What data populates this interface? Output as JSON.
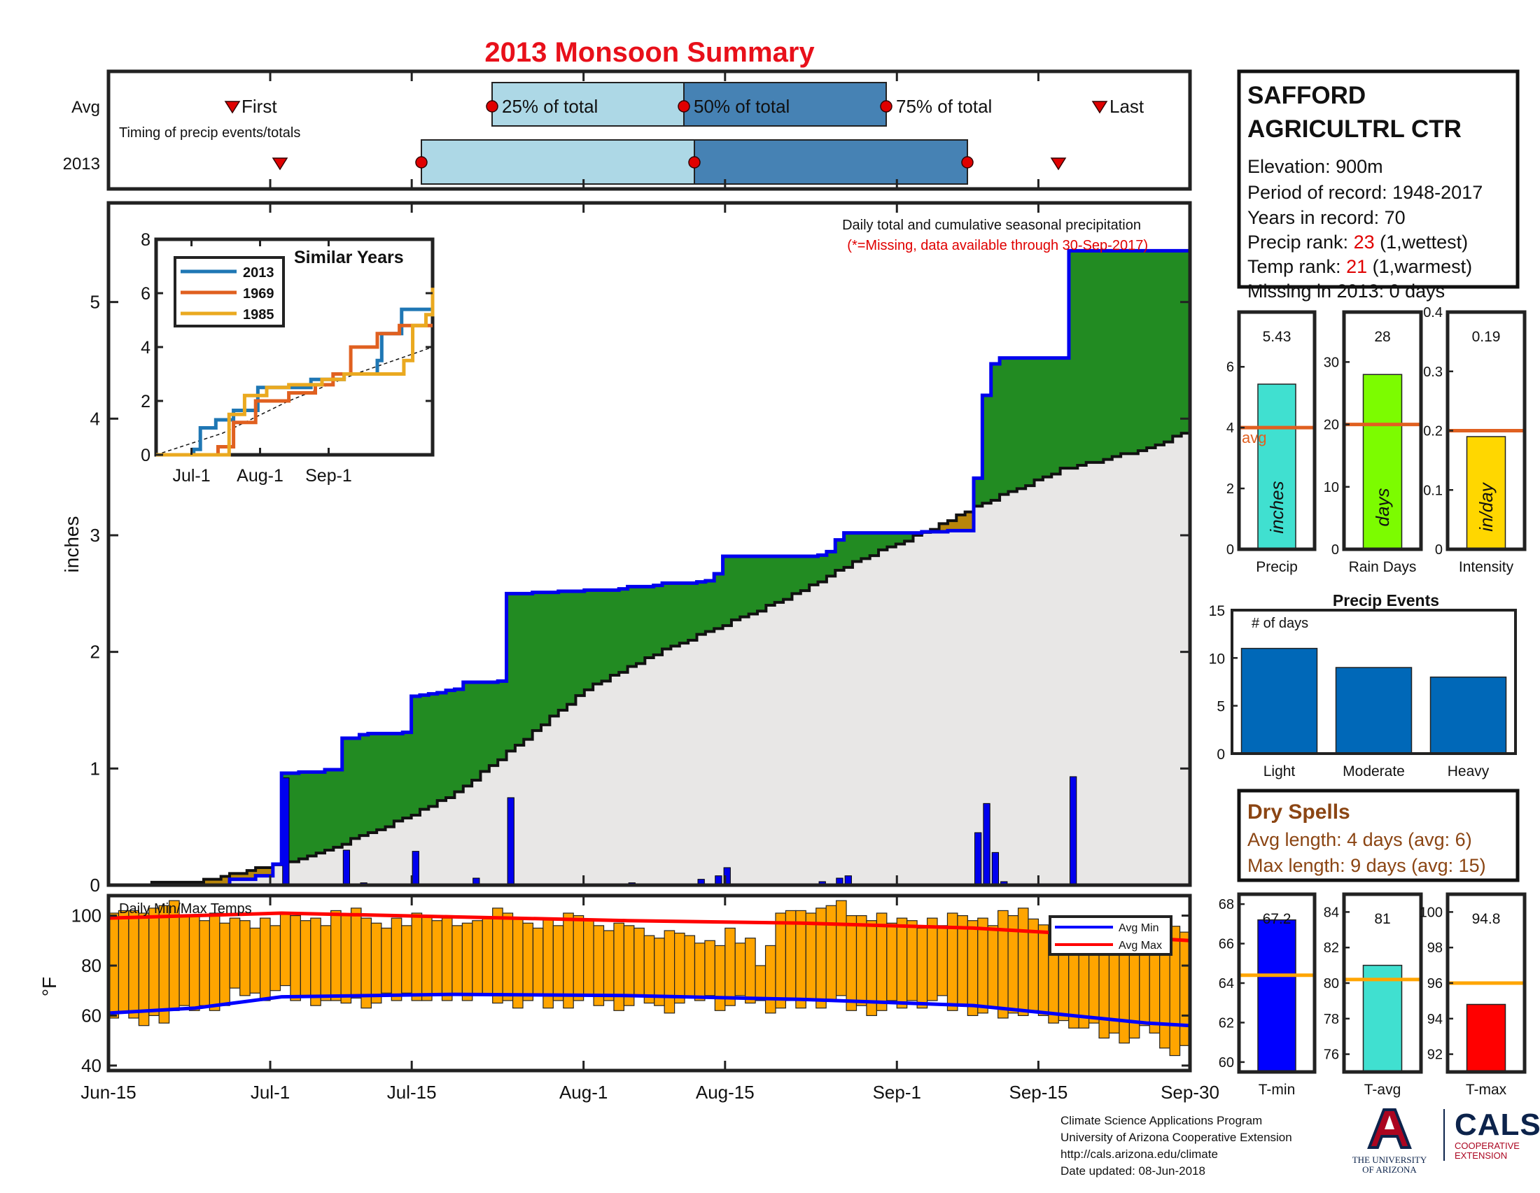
{
  "title": "2013 Monsoon Summary",
  "timing": {
    "row_labels": [
      "Avg",
      "2013"
    ],
    "caption": "Timing of precip events/totals",
    "labels": {
      "first": "First",
      "p25": "25% of total",
      "p50": "50% of total",
      "p75": "75% of total",
      "last": "Last"
    }
  },
  "station": {
    "name_line1": "SAFFORD",
    "name_line2": "AGRICULTRL CTR",
    "elevation": "Elevation: 900m",
    "period": "Period of record: 1948-2017",
    "years": "Years in record: 70",
    "precip_rank_label": "Precip rank:",
    "precip_rank": "23",
    "precip_rank_note": "(1,wettest)",
    "temp_rank_label": "Temp rank:",
    "temp_rank": "21",
    "temp_rank_note": "(1,warmest)",
    "missing": "Missing in 2013: 0 days"
  },
  "main_chart": {
    "title": "Daily total and cumulative seasonal precipitation",
    "note": "(*=Missing, data available through 30-Sep-2017)",
    "ylabel": "inches",
    "yticks": [
      "0",
      "1",
      "2",
      "3",
      "4",
      "5"
    ],
    "xticks": [
      "Jun-15",
      "Jul-1",
      "Jul-15",
      "Aug-1",
      "Aug-15",
      "Sep-1",
      "Sep-15",
      "Sep-30"
    ]
  },
  "similar_years": {
    "title": "Similar Years",
    "legend": [
      "2013",
      "1969",
      "1985"
    ],
    "yticks": [
      "0",
      "2",
      "4",
      "6",
      "8"
    ],
    "xticks": [
      "Jul-1",
      "Aug-1",
      "Sep-1"
    ]
  },
  "temp_chart": {
    "title": "Daily Min/Max Temps",
    "ylabel": "°F",
    "yticks": [
      "40",
      "60",
      "80",
      "100"
    ],
    "legend": [
      "Avg Min",
      "Avg Max"
    ]
  },
  "summary_bars": {
    "avg_label": "avg",
    "panels": [
      {
        "label": "Precip",
        "unit": "inches",
        "value": "5.43",
        "yticks": [
          "0",
          "2",
          "4",
          "6"
        ]
      },
      {
        "label": "Rain Days",
        "unit": "days",
        "value": "28",
        "yticks": [
          "0",
          "10",
          "20",
          "30"
        ]
      },
      {
        "label": "Intensity",
        "unit": "in/day",
        "value": "0.19",
        "yticks": [
          "0",
          "0.1",
          "0.2",
          "0.3",
          "0.4"
        ]
      }
    ]
  },
  "precip_events": {
    "title": "Precip Events",
    "note": "# of days",
    "categories": [
      "Light",
      "Moderate",
      "Heavy"
    ],
    "yticks": [
      "0",
      "5",
      "10",
      "15"
    ]
  },
  "dry_spells": {
    "title": "Dry Spells",
    "avg": "Avg length: 4 days (avg: 6)",
    "max": "Max length: 9 days (avg: 15)"
  },
  "temp_bars": {
    "panels": [
      {
        "label": "T-min",
        "value": "67.2",
        "yticks": [
          "60",
          "62",
          "64",
          "66",
          "68"
        ]
      },
      {
        "label": "T-avg",
        "value": "81",
        "yticks": [
          "76",
          "78",
          "80",
          "82",
          "84"
        ]
      },
      {
        "label": "T-max",
        "value": "94.8",
        "yticks": [
          "92",
          "94",
          "96",
          "98",
          "100"
        ]
      }
    ]
  },
  "footer": {
    "line1": "Climate Science Applications Program",
    "line2": "University of Arizona Cooperative Extension",
    "line3": "http://cals.arizona.edu/climate",
    "line4": " Date updated: 08-Jun-2018"
  },
  "logos": {
    "ua_letter": "A",
    "ua_line1": "THE UNIVERSITY",
    "ua_line2": "OF ARIZONA",
    "cals_word": "CALS",
    "cals_sub1": "COOPERATIVE",
    "cals_sub2": "EXTENSION"
  },
  "colors": {
    "title": "#e8101a",
    "light_blue": "#add8e6",
    "steel_blue": "#4682b4",
    "marker_red": "#e00000",
    "green": "#228b22",
    "gray_fill": "#e8e7e6",
    "cum_line": "#0000ee",
    "tan": "#b8860b",
    "temp_bar": "#ffa500",
    "avg_orange": "#e06020",
    "bar_blue": "#0068b8",
    "dry_brown": "#8b4513",
    "tmin": "#0000ff",
    "tavg": "#40e0d0",
    "tmax": "#ff0000",
    "precip_bar": "#40e0d0",
    "days_bar": "#7cfc00",
    "intensity_bar": "#ffd700"
  },
  "chart_data": [
    {
      "type": "area",
      "name": "cumulative",
      "x_range": [
        "Jun-15",
        "Sep-30"
      ],
      "ylim": [
        0,
        5.85
      ],
      "cumulative_2013": [
        [
          0,
          0
        ],
        [
          14,
          0.05
        ],
        [
          17,
          0.08
        ],
        [
          19,
          0.18
        ],
        [
          20,
          0.96
        ],
        [
          22,
          0.97
        ],
        [
          25,
          0.99
        ],
        [
          27,
          1.26
        ],
        [
          29,
          1.29
        ],
        [
          30,
          1.3
        ],
        [
          34,
          1.31
        ],
        [
          35,
          1.62
        ],
        [
          36,
          1.63
        ],
        [
          37,
          1.64
        ],
        [
          38,
          1.65
        ],
        [
          39,
          1.67
        ],
        [
          40,
          1.68
        ],
        [
          41,
          1.74
        ],
        [
          45,
          1.75
        ],
        [
          46,
          2.5
        ],
        [
          49,
          2.51
        ],
        [
          52,
          2.52
        ],
        [
          55,
          2.53
        ],
        [
          59,
          2.54
        ],
        [
          60,
          2.56
        ],
        [
          63,
          2.57
        ],
        [
          64,
          2.59
        ],
        [
          68,
          2.6
        ],
        [
          69,
          2.61
        ],
        [
          70,
          2.67
        ],
        [
          71,
          2.82
        ],
        [
          75,
          2.82
        ],
        [
          82,
          2.83
        ],
        [
          83,
          2.86
        ],
        [
          84,
          2.96
        ],
        [
          85,
          3.02
        ],
        [
          94,
          3.03
        ],
        [
          97,
          3.04
        ],
        [
          99,
          3.04
        ],
        [
          100,
          3.49
        ],
        [
          101,
          4.2
        ],
        [
          102,
          4.47
        ],
        [
          103,
          4.52
        ],
        [
          109,
          4.52
        ],
        [
          110,
          4.52
        ],
        [
          111,
          5.44
        ],
        [
          124,
          5.44
        ],
        [
          125,
          5.44
        ]
      ],
      "average_cumulative": [
        [
          0,
          0
        ],
        [
          10,
          0.03
        ],
        [
          20,
          0.19
        ],
        [
          25,
          0.3
        ],
        [
          30,
          0.45
        ],
        [
          35,
          0.6
        ],
        [
          40,
          0.8
        ],
        [
          45,
          1.08
        ],
        [
          50,
          1.38
        ],
        [
          55,
          1.68
        ],
        [
          60,
          1.87
        ],
        [
          65,
          2.05
        ],
        [
          70,
          2.2
        ],
        [
          75,
          2.36
        ],
        [
          80,
          2.53
        ],
        [
          85,
          2.73
        ],
        [
          90,
          2.9
        ],
        [
          95,
          3.05
        ],
        [
          100,
          3.25
        ],
        [
          105,
          3.4
        ],
        [
          110,
          3.57
        ],
        [
          115,
          3.65
        ],
        [
          120,
          3.75
        ],
        [
          125,
          3.9
        ]
      ],
      "daily_bars": [
        [
          20,
          0.92
        ],
        [
          27,
          0.3
        ],
        [
          29,
          0.02
        ],
        [
          35,
          0.29
        ],
        [
          42,
          0.06
        ],
        [
          46,
          0.75
        ],
        [
          60,
          0.02
        ],
        [
          68,
          0.05
        ],
        [
          70,
          0.08
        ],
        [
          71,
          0.15
        ],
        [
          82,
          0.03
        ],
        [
          84,
          0.06
        ],
        [
          85,
          0.08
        ],
        [
          100,
          0.45
        ],
        [
          101,
          0.7
        ],
        [
          102,
          0.28
        ],
        [
          103,
          0.03
        ],
        [
          111,
          0.93
        ]
      ],
      "ylabel": "inches"
    },
    {
      "type": "line",
      "name": "similar_years",
      "ylim": [
        0,
        8
      ],
      "series": [
        {
          "name": "2013",
          "color": "#1f77b4",
          "points": [
            [
              0,
              0
            ],
            [
              14,
              0
            ],
            [
              17,
              0.2
            ],
            [
              20,
              1
            ],
            [
              27,
              1.3
            ],
            [
              35,
              1.65
            ],
            [
              46,
              2.5
            ],
            [
              70,
              2.8
            ],
            [
              85,
              3
            ],
            [
              100,
              3.5
            ],
            [
              102,
              4.5
            ],
            [
              111,
              5.4
            ],
            [
              125,
              5.4
            ]
          ]
        },
        {
          "name": "1969",
          "color": "#e06020",
          "points": [
            [
              0,
              0
            ],
            [
              25,
              0
            ],
            [
              28,
              0.3
            ],
            [
              35,
              1.2
            ],
            [
              45,
              2
            ],
            [
              60,
              2.3
            ],
            [
              72,
              2.6
            ],
            [
              80,
              3
            ],
            [
              88,
              4
            ],
            [
              100,
              4.5
            ],
            [
              110,
              4.8
            ],
            [
              125,
              4.8
            ]
          ]
        },
        {
          "name": "1985",
          "color": "#eaa920",
          "points": [
            [
              0,
              0
            ],
            [
              30,
              0
            ],
            [
              33,
              1.5
            ],
            [
              40,
              2.2
            ],
            [
              50,
              2.5
            ],
            [
              60,
              2.6
            ],
            [
              75,
              2.8
            ],
            [
              85,
              3
            ],
            [
              100,
              3
            ],
            [
              112,
              3.5
            ],
            [
              116,
              4.8
            ],
            [
              122,
              5.2
            ],
            [
              125,
              6.2
            ]
          ]
        }
      ],
      "average_series": [
        [
          0,
          0
        ],
        [
          30,
          0.8
        ],
        [
          60,
          2
        ],
        [
          90,
          3
        ],
        [
          125,
          4
        ]
      ]
    },
    {
      "type": "bar",
      "name": "daily_min_max_temps",
      "ylim": [
        38,
        108
      ],
      "avg_max": [
        [
          0,
          99
        ],
        [
          20,
          101
        ],
        [
          40,
          99.5
        ],
        [
          60,
          98
        ],
        [
          80,
          97
        ],
        [
          100,
          95
        ],
        [
          120,
          91
        ],
        [
          125,
          90
        ]
      ],
      "avg_min": [
        [
          0,
          61
        ],
        [
          10,
          63
        ],
        [
          20,
          67.5
        ],
        [
          40,
          68.5
        ],
        [
          60,
          68
        ],
        [
          80,
          66.5
        ],
        [
          100,
          64
        ],
        [
          120,
          57
        ],
        [
          125,
          56
        ]
      ],
      "daily_max_sample": [
        101,
        102,
        102,
        101,
        103,
        104,
        106,
        100,
        100,
        98,
        101,
        97,
        99,
        98,
        95,
        99,
        96,
        101,
        100,
        98,
        99,
        96,
        102,
        100,
        103,
        99,
        97,
        95,
        99,
        96,
        101,
        100,
        98,
        99,
        96,
        97,
        98,
        99,
        103,
        101,
        99,
        97,
        95,
        99,
        96,
        101,
        100,
        98,
        96,
        94,
        97,
        96,
        95,
        92,
        91,
        94,
        93,
        92,
        89,
        90,
        88,
        95,
        89,
        91,
        80,
        88
      ],
      "daily_min_sample": [
        61,
        57,
        59,
        62,
        63,
        64,
        69,
        68,
        70,
        67,
        66,
        64,
        66,
        65,
        67,
        68,
        66,
        67,
        68,
        66,
        65,
        66,
        64,
        65,
        66,
        65,
        64,
        66,
        63,
        65,
        67,
        64,
        66,
        65,
        63,
        64,
        65,
        66,
        63,
        62,
        64,
        65,
        66,
        63,
        62,
        61,
        60,
        62,
        58,
        57,
        55,
        52,
        51,
        54,
        46,
        48
      ]
    },
    {
      "type": "bar",
      "name": "summary_precip",
      "categories": [
        "Precip",
        "Rain Days",
        "Intensity"
      ],
      "values": [
        5.43,
        28,
        0.19
      ],
      "averages": [
        4.0,
        20,
        0.2
      ],
      "ylims": [
        [
          0,
          7.8
        ],
        [
          0,
          38
        ],
        [
          0,
          0.4
        ]
      ]
    },
    {
      "type": "bar",
      "name": "precip_events",
      "categories": [
        "Light",
        "Moderate",
        "Heavy"
      ],
      "values": [
        11,
        9,
        8
      ],
      "ylim": [
        0,
        15
      ]
    },
    {
      "type": "bar",
      "name": "temperature_summary",
      "categories": [
        "T-min",
        "T-avg",
        "T-max"
      ],
      "values": [
        67.2,
        81,
        94.8
      ],
      "averages": [
        64.4,
        80.2,
        96
      ],
      "ylims": [
        [
          59.5,
          68.5
        ],
        [
          75,
          85
        ],
        [
          91,
          101
        ]
      ]
    }
  ]
}
